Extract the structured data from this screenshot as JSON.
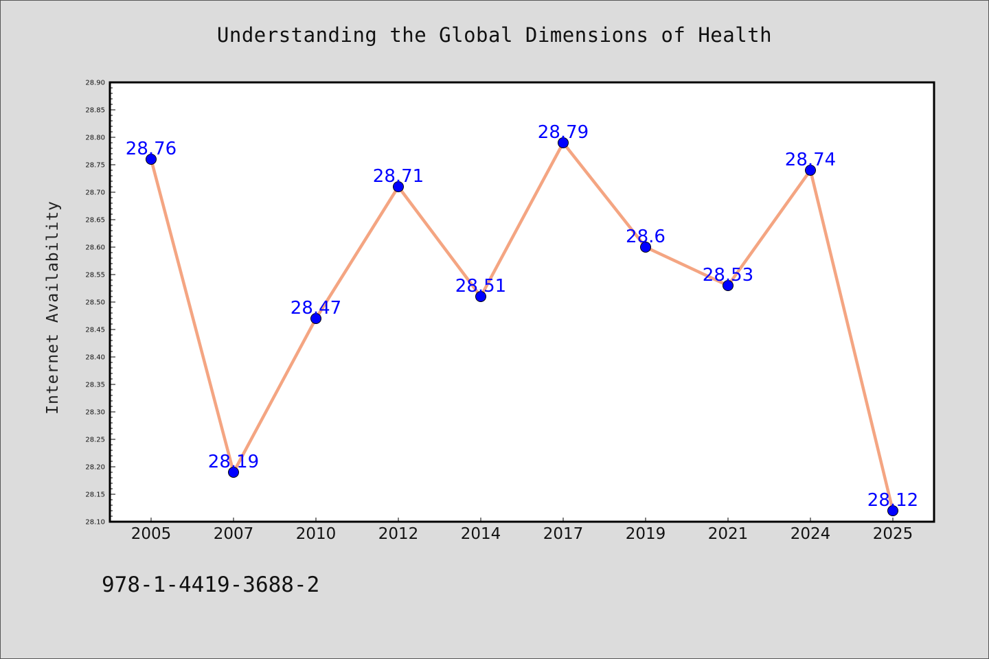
{
  "chart_data": {
    "type": "line",
    "title": "Understanding the Global Dimensions of Health",
    "xlabel": "",
    "ylabel": "Internet Availability",
    "categories": [
      "2005",
      "2007",
      "2010",
      "2012",
      "2014",
      "2017",
      "2019",
      "2021",
      "2024",
      "2025"
    ],
    "series": [
      {
        "values": [
          28.76,
          28.19,
          28.47,
          28.71,
          28.51,
          28.79,
          28.6,
          28.53,
          28.74,
          28.12
        ],
        "labels": [
          "28.76",
          "28.19",
          "28.47",
          "28.71",
          "28.51",
          "28.79",
          "28.6",
          "28.53",
          "28.74",
          "28.12"
        ]
      }
    ],
    "ylim": [
      28.1,
      28.9
    ],
    "yticks": [
      "28.10",
      "28.15",
      "28.20",
      "28.25",
      "28.30",
      "28.35",
      "28.40",
      "28.45",
      "28.50",
      "28.55",
      "28.60",
      "28.65",
      "28.70",
      "28.75",
      "28.80",
      "28.85",
      "28.90"
    ],
    "grid": false,
    "legend": "none"
  },
  "footer": {
    "isbn": "978-1-4419-3688-2"
  },
  "colors": {
    "background": "#dcdcdc",
    "plot_area": "#ffffff",
    "line": "#f4a582",
    "marker": "#0000ff",
    "data_label": "#0000ff"
  }
}
